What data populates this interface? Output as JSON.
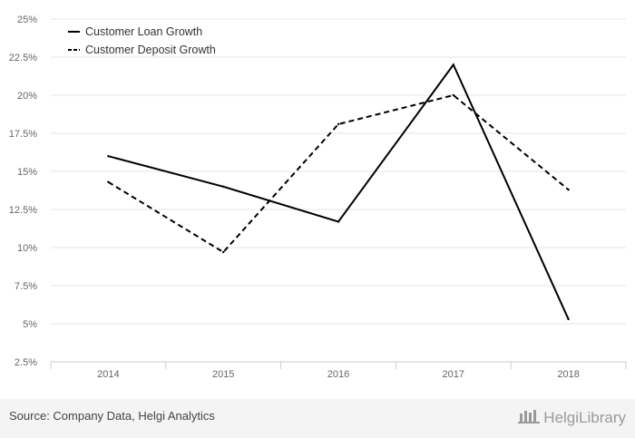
{
  "chart_data": {
    "type": "line",
    "categories": [
      "2014",
      "2015",
      "2016",
      "2017",
      "2018"
    ],
    "series": [
      {
        "name": "Customer Loan Growth",
        "values": [
          16.0,
          14.0,
          11.7,
          22.0,
          5.3
        ],
        "dash": "solid",
        "color": "#000000"
      },
      {
        "name": "Customer Deposit Growth",
        "values": [
          14.3,
          9.7,
          18.1,
          20.0,
          13.8
        ],
        "dash": "dashed",
        "color": "#000000"
      }
    ],
    "ylim": [
      2.5,
      25
    ],
    "yticks": [
      "2.5%",
      "5%",
      "7.5%",
      "10%",
      "12.5%",
      "15%",
      "17.5%",
      "20%",
      "22.5%",
      "25%"
    ],
    "ytick_values": [
      2.5,
      5,
      7.5,
      10,
      12.5,
      15,
      17.5,
      20,
      22.5,
      25
    ],
    "grid": true,
    "legend_position": "top-left"
  },
  "footer": {
    "source": "Source: Company Data, Helgi Analytics",
    "brand": "HelgiLibrary"
  },
  "colors": {
    "grid": "#e6e6e6",
    "axis": "#cccccc",
    "footer_bg": "#f4f4f4"
  }
}
